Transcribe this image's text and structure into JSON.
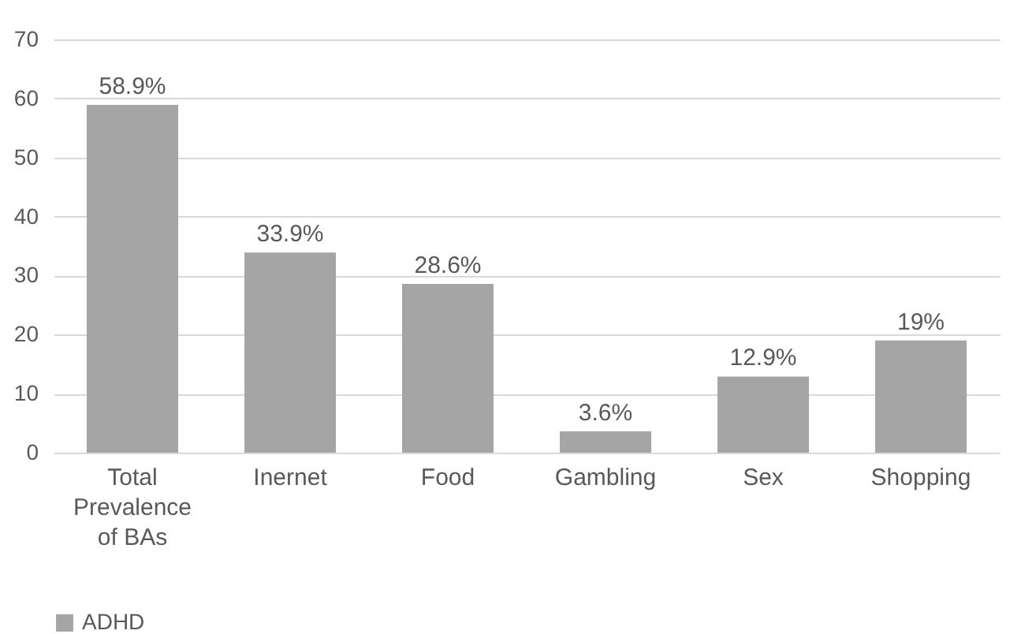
{
  "chart_data": {
    "type": "bar",
    "categories": [
      "Total Prevalence of BAs",
      "Inernet",
      "Food",
      "Gambling",
      "Sex",
      "Shopping"
    ],
    "series": [
      {
        "name": "ADHD",
        "color": "#a5a5a5",
        "values": [
          58.9,
          33.9,
          28.6,
          3.6,
          12.9,
          19
        ],
        "value_labels": [
          "58.9%",
          "33.9%",
          "28.6%",
          "3.6%",
          "12.9%",
          "19%"
        ]
      }
    ],
    "ylim": [
      0,
      70
    ],
    "yticks": [
      0,
      10,
      20,
      30,
      40,
      50,
      60,
      70
    ],
    "grid": "y",
    "legend": "bottom"
  }
}
